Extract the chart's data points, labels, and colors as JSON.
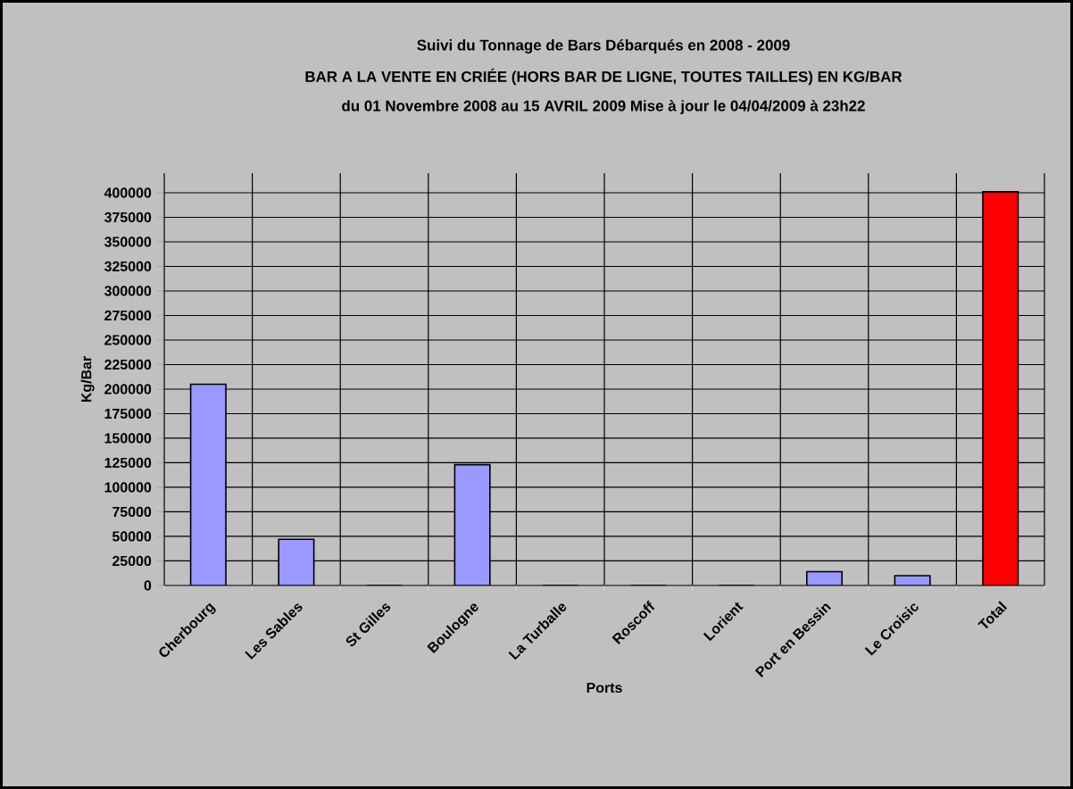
{
  "chart_data": {
    "type": "bar",
    "title": "Suivi du Tonnage de Bars Débarqués en 2008 - 2009",
    "subtitle": "BAR A LA VENTE EN CRIÉE (HORS BAR DE LIGNE, TOUTES TAILLES) EN KG/BAR",
    "annotations": [
      "du 01 Novembre 2008 au 15 AVRIL 2009 Mise à jour le 04/04/2009 à 23h22"
    ],
    "xlabel": "Ports",
    "ylabel": "Kg/Bar",
    "categories": [
      "Cherbourg",
      "Les Sables",
      "St Gilles",
      "Boulogne",
      "La Turballe",
      "Roscoff",
      "Lorient",
      "Port en Bessin",
      "Le Croisic",
      "Total"
    ],
    "values": [
      205000,
      47000,
      0,
      123000,
      0,
      0,
      0,
      14000,
      10000,
      401000
    ],
    "colors": [
      "#9999ff",
      "#9999ff",
      "#9999ff",
      "#9999ff",
      "#9999ff",
      "#9999ff",
      "#9999ff",
      "#9999ff",
      "#9999ff",
      "#ff0000"
    ],
    "ylim": [
      0,
      420000
    ],
    "yticks": [
      0,
      25000,
      50000,
      75000,
      100000,
      125000,
      150000,
      175000,
      200000,
      225000,
      250000,
      275000,
      300000,
      325000,
      350000,
      375000,
      400000
    ],
    "grid": true
  }
}
